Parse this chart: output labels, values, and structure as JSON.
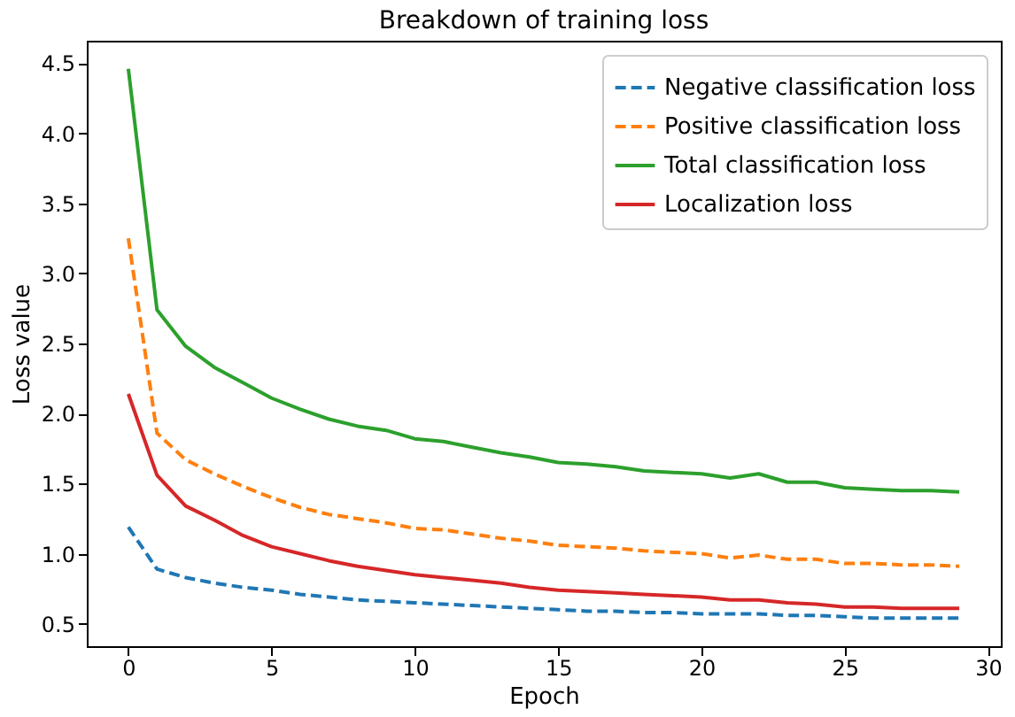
{
  "chart_data": {
    "type": "line",
    "title": "Breakdown of training loss",
    "xlabel": "Epoch",
    "ylabel": "Loss value",
    "x": [
      0,
      1,
      2,
      3,
      4,
      5,
      6,
      7,
      8,
      9,
      10,
      11,
      12,
      13,
      14,
      15,
      16,
      17,
      18,
      19,
      20,
      21,
      22,
      23,
      24,
      25,
      26,
      27,
      28,
      29
    ],
    "xlim": [
      -1.45,
      30.45
    ],
    "xticks": [
      0,
      5,
      10,
      15,
      20,
      25,
      30
    ],
    "ylim": [
      0.34,
      4.66
    ],
    "yticks": [
      0.5,
      {
        "value": 1,
        "label": "1.0"
      },
      1.5,
      {
        "value": 2,
        "label": "2.0"
      },
      2.5,
      {
        "value": 3,
        "label": "3.0"
      },
      3.5,
      {
        "value": 4,
        "label": "4.0"
      },
      4.5
    ],
    "grid": false,
    "legend": "top right",
    "marker": "none",
    "series": [
      {
        "name": "Negative classification loss",
        "color": "#1f77b4",
        "line_style": "dashed",
        "values": [
          1.19,
          0.89,
          0.83,
          0.79,
          0.76,
          0.74,
          0.71,
          0.69,
          0.67,
          0.66,
          0.65,
          0.64,
          0.63,
          0.62,
          0.61,
          0.6,
          0.59,
          0.59,
          0.58,
          0.58,
          0.57,
          0.57,
          0.57,
          0.56,
          0.56,
          0.55,
          0.54,
          0.54,
          0.54,
          0.54
        ]
      },
      {
        "name": "Positive classification loss",
        "color": "#ff7f0e",
        "line_style": "dashed",
        "values": [
          3.25,
          1.86,
          1.67,
          1.57,
          1.48,
          1.4,
          1.33,
          1.28,
          1.25,
          1.22,
          1.18,
          1.17,
          1.14,
          1.11,
          1.09,
          1.06,
          1.05,
          1.04,
          1.02,
          1.01,
          1.0,
          0.97,
          0.99,
          0.96,
          0.96,
          0.93,
          0.93,
          0.92,
          0.92,
          0.91
        ]
      },
      {
        "name": "Total classification loss",
        "color": "#2ca02c",
        "line_style": "solid",
        "values": [
          4.46,
          2.74,
          2.48,
          2.33,
          2.22,
          2.11,
          2.03,
          1.96,
          1.91,
          1.88,
          1.82,
          1.8,
          1.76,
          1.72,
          1.69,
          1.65,
          1.64,
          1.62,
          1.59,
          1.58,
          1.57,
          1.54,
          1.57,
          1.51,
          1.51,
          1.47,
          1.46,
          1.45,
          1.45,
          1.44
        ]
      },
      {
        "name": "Localization loss",
        "color": "#d62728",
        "line_style": "solid",
        "values": [
          2.14,
          1.56,
          1.34,
          1.24,
          1.13,
          1.05,
          1.0,
          0.95,
          0.91,
          0.88,
          0.85,
          0.83,
          0.81,
          0.79,
          0.76,
          0.74,
          0.73,
          0.72,
          0.71,
          0.7,
          0.69,
          0.67,
          0.67,
          0.65,
          0.64,
          0.62,
          0.62,
          0.61,
          0.61,
          0.61
        ]
      }
    ]
  }
}
